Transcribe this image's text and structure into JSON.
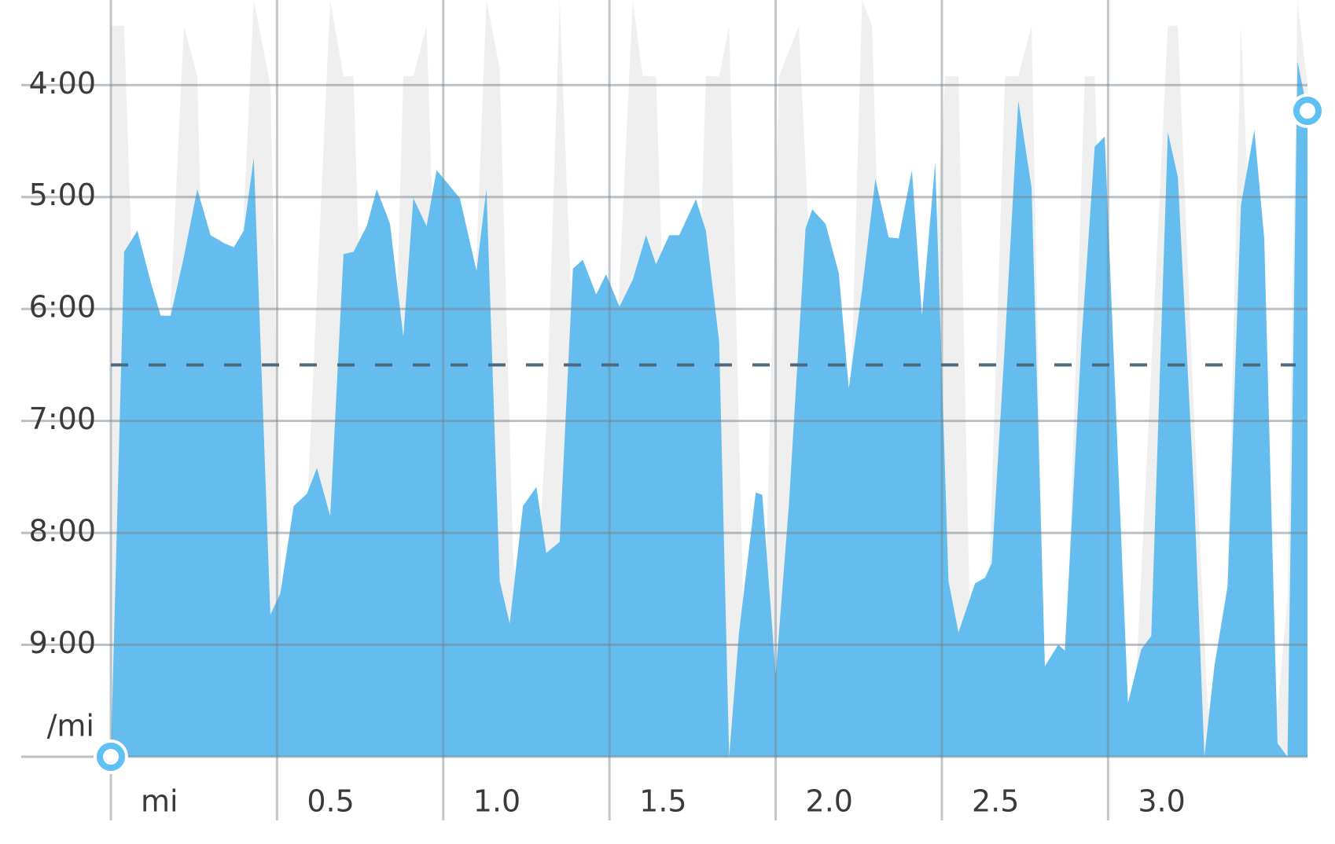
{
  "chart_data": {
    "type": "area",
    "y_label": "/mi",
    "xlim": [
      0,
      3.6
    ],
    "ylim": [
      10,
      3.24
    ],
    "xticks": [
      {
        "value": 0,
        "label": "mi"
      },
      0.5,
      {
        "value": 1,
        "label": "1.0"
      },
      1.5,
      {
        "value": 2,
        "label": "2.0"
      },
      2.5,
      {
        "value": 3,
        "label": "3.0"
      }
    ],
    "yticks": [
      {
        "value": 4,
        "label": "4:00"
      },
      {
        "value": 5,
        "label": "5:00"
      },
      {
        "value": 6,
        "label": "6:00"
      },
      {
        "value": 7,
        "label": "7:00"
      },
      {
        "value": 8,
        "label": "8:00"
      },
      {
        "value": 9,
        "label": "9:00"
      }
    ],
    "grid": true,
    "average": 6.5,
    "average_color": "#4d6b80",
    "endpoint_markers": true,
    "series": [
      {
        "color": "#efefef",
        "x": [
          0,
          0.04,
          0.08,
          0.12,
          0.15,
          0.22,
          0.26,
          0.3,
          0.34,
          0.37,
          0.43,
          0.48,
          0.52,
          0.55,
          0.59,
          0.66,
          0.7,
          0.73,
          0.77,
          0.81,
          0.85,
          0.88,
          0.91,
          0.95,
          0.98,
          1.03,
          1.08,
          1.13,
          1.17,
          1.21,
          1.26,
          1.31,
          1.35,
          1.39,
          1.44,
          1.51,
          1.57,
          1.6,
          1.64,
          1.7,
          1.75,
          1.79,
          1.83,
          1.86,
          1.91,
          1.96,
          2.01,
          2.07,
          2.14,
          2.2,
          2.26,
          2.29,
          2.35,
          2.4,
          2.45,
          2.51,
          2.55,
          2.59,
          2.63,
          2.69,
          2.73,
          2.77,
          2.81,
          2.87,
          2.93,
          2.96,
          3.02,
          3.08,
          3.18,
          3.21,
          3.26,
          3.3,
          3.35,
          3.4,
          3.45,
          3.51,
          3.54,
          3.57,
          3.6
        ],
        "values": [
          3.47,
          3.47,
          7.05,
          9.57,
          7.82,
          3.47,
          3.92,
          8.58,
          9.57,
          7.05,
          3.24,
          4.0,
          9.57,
          9.57,
          7.82,
          3.24,
          3.92,
          3.92,
          7.82,
          9.57,
          7.05,
          3.92,
          3.92,
          3.47,
          6.29,
          9.57,
          7.05,
          3.24,
          3.85,
          8.2,
          9.57,
          7.05,
          3.24,
          6.29,
          9.57,
          7.05,
          3.24,
          3.92,
          3.92,
          9.57,
          7.82,
          3.92,
          3.92,
          3.47,
          9.57,
          9.57,
          3.92,
          3.47,
          7.82,
          9.57,
          3.24,
          3.47,
          9.57,
          9.57,
          7.05,
          3.92,
          3.92,
          9.57,
          9.57,
          3.92,
          3.92,
          3.47,
          9.57,
          9.57,
          3.92,
          3.92,
          9.57,
          9.57,
          3.47,
          3.47,
          7.05,
          9.57,
          9.57,
          3.47,
          7.05,
          9.57,
          8.58,
          3.24,
          4.0
        ]
      },
      {
        "color": "#64bdee",
        "x": [
          0,
          0.04,
          0.08,
          0.12,
          0.15,
          0.18,
          0.22,
          0.26,
          0.3,
          0.34,
          0.37,
          0.4,
          0.43,
          0.48,
          0.51,
          0.55,
          0.59,
          0.62,
          0.66,
          0.7,
          0.73,
          0.77,
          0.8,
          0.84,
          0.88,
          0.91,
          0.95,
          0.98,
          1.05,
          1.1,
          1.13,
          1.17,
          1.2,
          1.24,
          1.28,
          1.31,
          1.35,
          1.39,
          1.42,
          1.46,
          1.49,
          1.53,
          1.57,
          1.61,
          1.64,
          1.68,
          1.71,
          1.76,
          1.79,
          1.83,
          1.86,
          1.89,
          1.94,
          1.96,
          2.0,
          2.04,
          2.09,
          2.11,
          2.15,
          2.19,
          2.22,
          2.26,
          2.3,
          2.34,
          2.37,
          2.41,
          2.44,
          2.48,
          2.52,
          2.55,
          2.6,
          2.63,
          2.65,
          2.69,
          2.73,
          2.77,
          2.81,
          2.85,
          2.87,
          2.92,
          2.96,
          2.99,
          3.06,
          3.1,
          3.13,
          3.18,
          3.21,
          3.26,
          3.29,
          3.32,
          3.36,
          3.4,
          3.44,
          3.47,
          3.51,
          3.54,
          3.57,
          3.6
        ],
        "values": [
          10,
          5.49,
          5.3,
          5.76,
          6.06,
          6.06,
          5.53,
          4.93,
          5.34,
          5.41,
          5.45,
          5.3,
          4.65,
          8.73,
          8.54,
          7.76,
          7.65,
          7.42,
          7.85,
          5.51,
          5.49,
          5.26,
          4.93,
          5.24,
          6.25,
          5.01,
          5.26,
          4.76,
          5.01,
          5.66,
          4.93,
          8.43,
          8.81,
          7.76,
          7.59,
          8.18,
          8.08,
          5.64,
          5.56,
          5.87,
          5.69,
          5.98,
          5.74,
          5.34,
          5.6,
          5.34,
          5.34,
          5.02,
          5.3,
          6.29,
          10,
          8.89,
          7.64,
          7.66,
          9.27,
          7.74,
          5.28,
          5.11,
          5.24,
          5.68,
          6.71,
          5.83,
          4.84,
          5.36,
          5.37,
          4.76,
          6.06,
          4.69,
          8.43,
          8.89,
          8.45,
          8.4,
          8.27,
          6.29,
          4.14,
          4.92,
          9.19,
          9.0,
          9.05,
          6.29,
          4.55,
          4.46,
          9.52,
          9.04,
          8.92,
          4.42,
          4.82,
          7.74,
          10,
          9.19,
          8.47,
          5.07,
          4.4,
          5.37,
          9.88,
          10,
          3.79,
          4.23
        ]
      }
    ]
  }
}
